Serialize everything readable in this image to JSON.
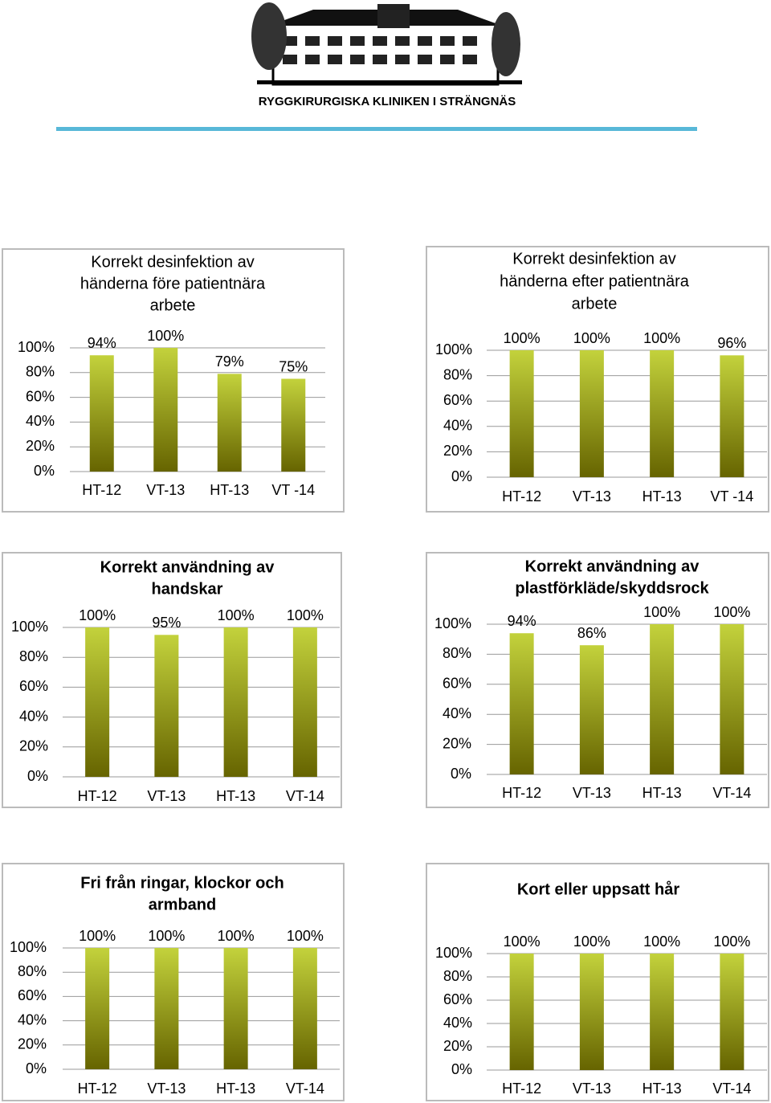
{
  "header": {
    "logo_text": "RYGGKIRURGISKA KLINIKEN I STRÄNGNÄS"
  },
  "chart_data": [
    {
      "type": "bar",
      "title": [
        "Korrekt desinfektion av",
        "händerna före patientnära",
        "arbete"
      ],
      "categories": [
        "HT-12",
        "VT-13",
        "HT-13",
        "VT -14"
      ],
      "values": [
        94,
        100,
        79,
        75
      ],
      "value_labels": [
        "94%",
        "100%",
        "79%",
        "75%"
      ],
      "ylim": [
        0,
        100
      ],
      "yticks": [
        {
          "value": 0,
          "label": "0%"
        },
        {
          "value": 20,
          "label": "20%"
        },
        {
          "value": 40,
          "label": "40%"
        },
        {
          "value": 60,
          "label": "60%"
        },
        {
          "value": 80,
          "label": "80%"
        },
        {
          "value": 100,
          "label": "100%"
        }
      ],
      "grid": true,
      "color_top": "#c3d23c",
      "color_bottom": "#666400"
    },
    {
      "type": "bar",
      "title": [
        "Korrekt desinfektion av",
        "händerna efter patientnära",
        "arbete"
      ],
      "categories": [
        "HT-12",
        "VT-13",
        "HT-13",
        "VT -14"
      ],
      "values": [
        100,
        100,
        100,
        96
      ],
      "value_labels": [
        "100%",
        "100%",
        "100%",
        "96%"
      ],
      "ylim": [
        0,
        100
      ],
      "yticks": [
        {
          "value": 0,
          "label": "0%"
        },
        {
          "value": 20,
          "label": "20%"
        },
        {
          "value": 40,
          "label": "40%"
        },
        {
          "value": 60,
          "label": "60%"
        },
        {
          "value": 80,
          "label": "80%"
        },
        {
          "value": 100,
          "label": "100%"
        }
      ],
      "grid": true,
      "color_top": "#c3d23c",
      "color_bottom": "#666400"
    },
    {
      "type": "bar",
      "title": [
        "Korrekt användning av",
        "handskar"
      ],
      "categories": [
        "HT-12",
        "VT-13",
        "HT-13",
        "VT-14"
      ],
      "values": [
        100,
        95,
        100,
        100
      ],
      "value_labels": [
        "100%",
        "95%",
        "100%",
        "100%"
      ],
      "ylim": [
        0,
        100
      ],
      "yticks": [
        {
          "value": 0,
          "label": "0%"
        },
        {
          "value": 20,
          "label": "20%"
        },
        {
          "value": 40,
          "label": "40%"
        },
        {
          "value": 60,
          "label": "60%"
        },
        {
          "value": 80,
          "label": "80%"
        },
        {
          "value": 100,
          "label": "100%"
        }
      ],
      "grid": true,
      "color_top": "#c3d23c",
      "color_bottom": "#666400"
    },
    {
      "type": "bar",
      "title": [
        "Korrekt användning av",
        "plastförkläde/skyddsrock"
      ],
      "categories": [
        "HT-12",
        "VT-13",
        "HT-13",
        "VT-14"
      ],
      "values": [
        94,
        86,
        100,
        100
      ],
      "value_labels": [
        "94%",
        "86%",
        "100%",
        "100%"
      ],
      "ylim": [
        0,
        100
      ],
      "yticks": [
        {
          "value": 0,
          "label": "0%"
        },
        {
          "value": 20,
          "label": "20%"
        },
        {
          "value": 40,
          "label": "40%"
        },
        {
          "value": 60,
          "label": "60%"
        },
        {
          "value": 80,
          "label": "80%"
        },
        {
          "value": 100,
          "label": "100%"
        }
      ],
      "grid": true,
      "color_top": "#c3d23c",
      "color_bottom": "#666400"
    },
    {
      "type": "bar",
      "title": [
        "Fri från ringar, klockor och",
        "armband"
      ],
      "categories": [
        "HT-12",
        "VT-13",
        "HT-13",
        "VT-14"
      ],
      "values": [
        100,
        100,
        100,
        100
      ],
      "value_labels": [
        "100%",
        "100%",
        "100%",
        "100%"
      ],
      "ylim": [
        0,
        100
      ],
      "yticks": [
        {
          "value": 0,
          "label": "0%"
        },
        {
          "value": 20,
          "label": "20%"
        },
        {
          "value": 40,
          "label": "40%"
        },
        {
          "value": 60,
          "label": "60%"
        },
        {
          "value": 80,
          "label": "80%"
        },
        {
          "value": 100,
          "label": "100%"
        }
      ],
      "grid": true,
      "color_top": "#c3d23c",
      "color_bottom": "#666400"
    },
    {
      "type": "bar",
      "title": [
        "Kort eller uppsatt hår"
      ],
      "categories": [
        "HT-12",
        "VT-13",
        "HT-13",
        "VT-14"
      ],
      "values": [
        100,
        100,
        100,
        100
      ],
      "value_labels": [
        "100%",
        "100%",
        "100%",
        "100%"
      ],
      "ylim": [
        0,
        100
      ],
      "yticks": [
        {
          "value": 0,
          "label": "0%"
        },
        {
          "value": 20,
          "label": "20%"
        },
        {
          "value": 40,
          "label": "40%"
        },
        {
          "value": 60,
          "label": "60%"
        },
        {
          "value": 80,
          "label": "80%"
        },
        {
          "value": 100,
          "label": "100%"
        }
      ],
      "grid": true,
      "color_top": "#c3d23c",
      "color_bottom": "#666400"
    }
  ]
}
